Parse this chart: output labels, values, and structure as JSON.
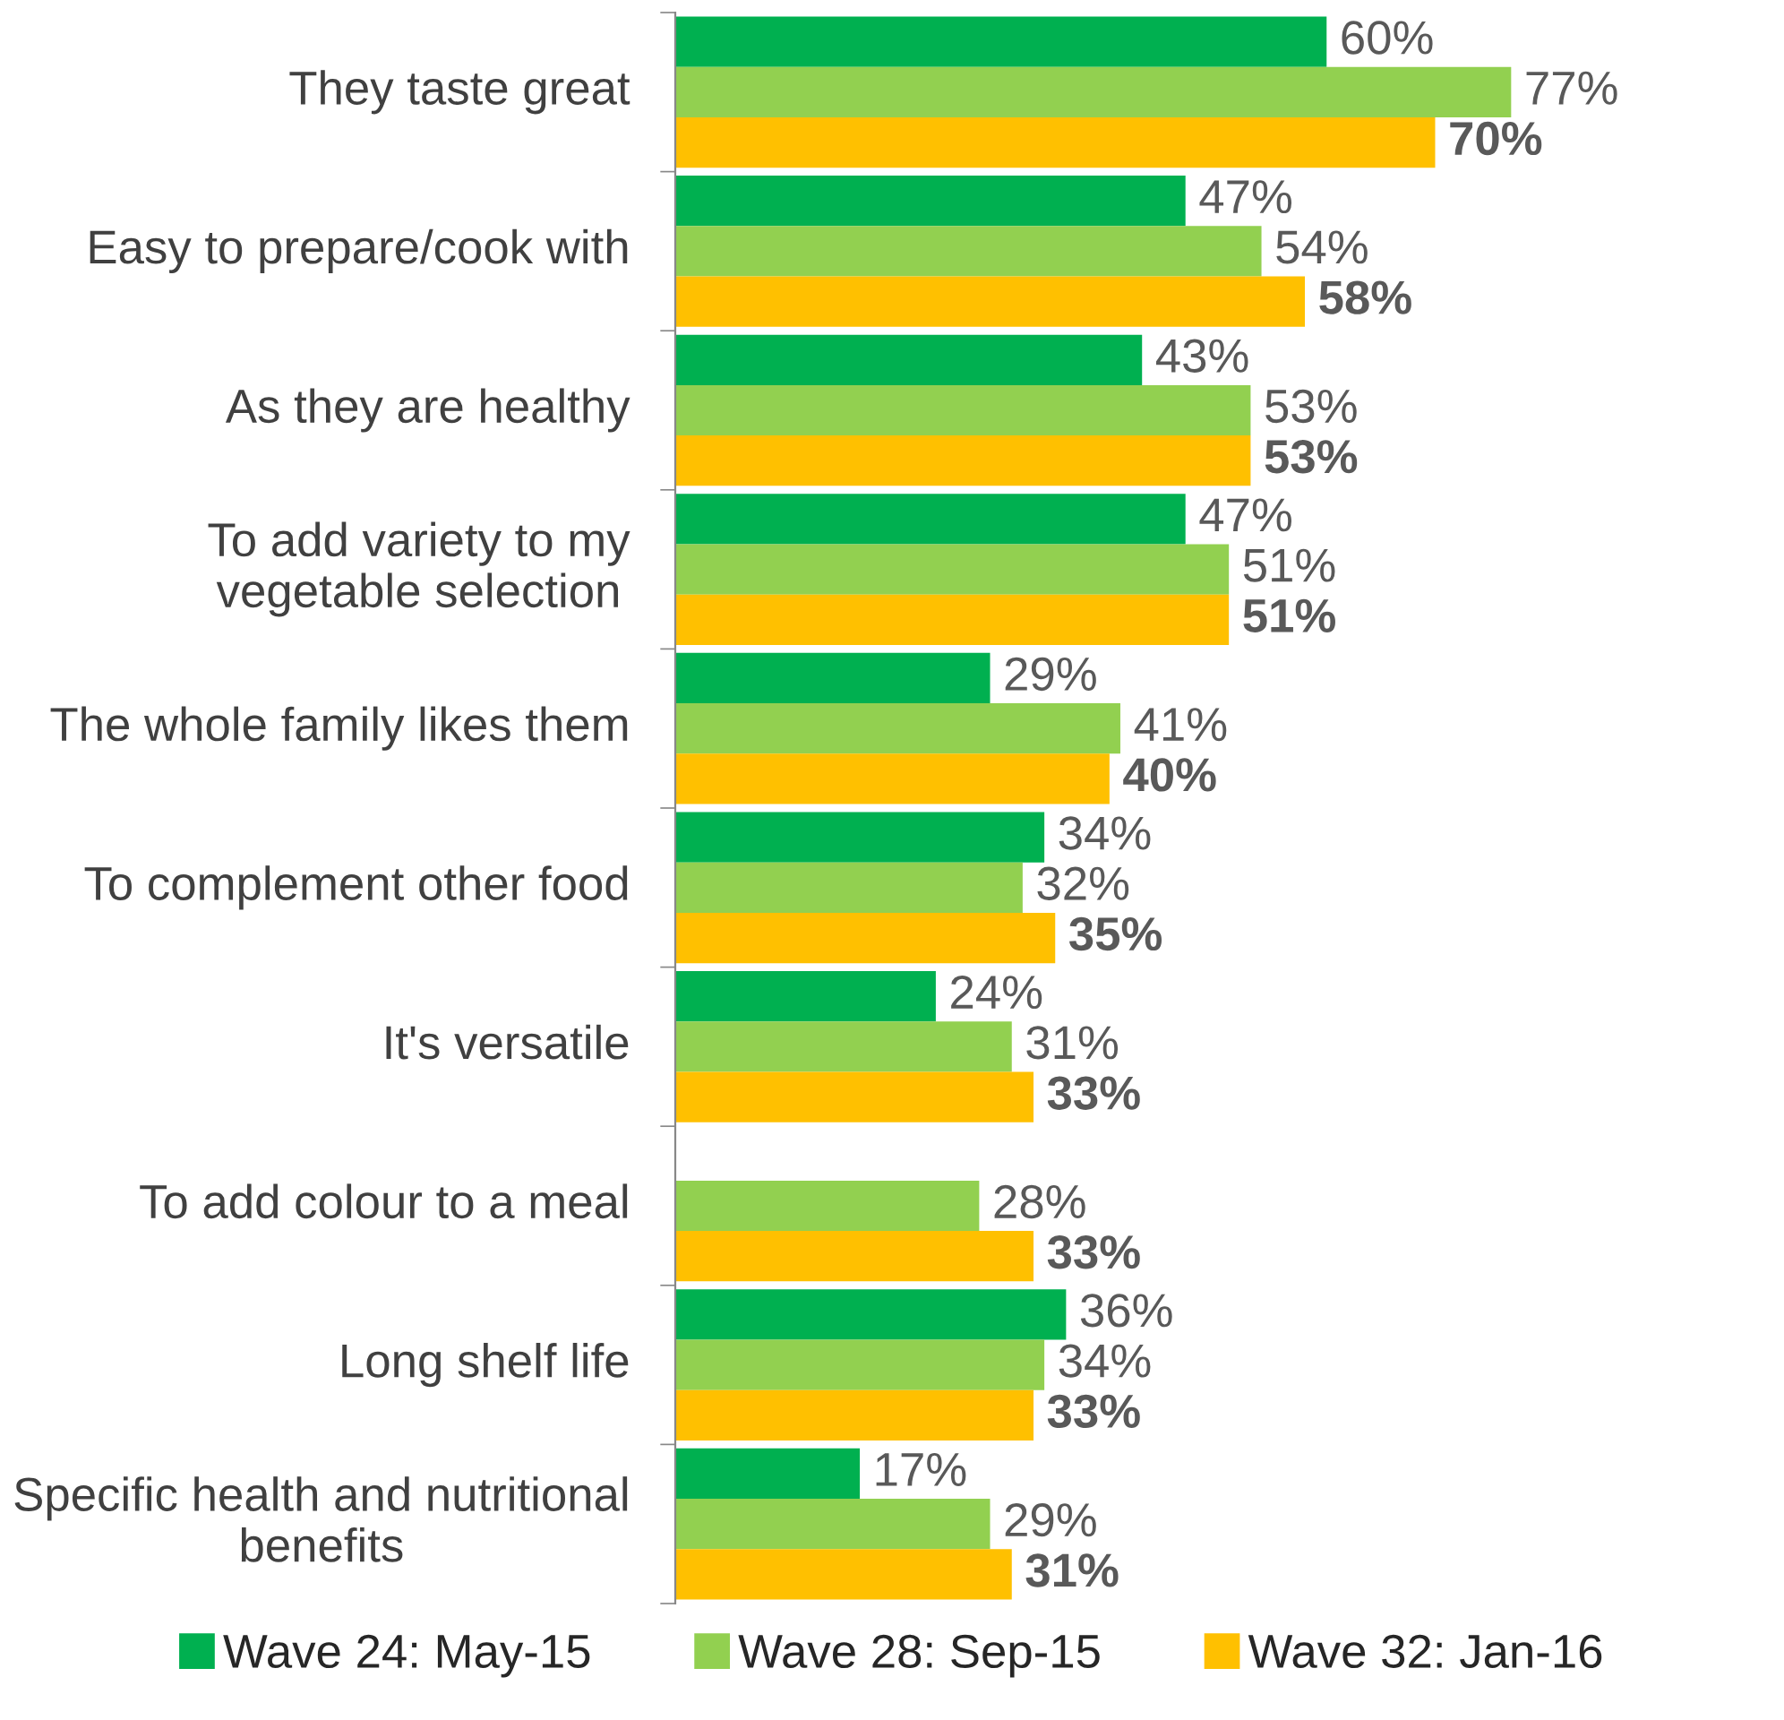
{
  "chart_data": {
    "type": "bar",
    "orientation": "horizontal",
    "legend": "bottom",
    "categories": [
      "They taste great",
      "Easy to prepare/cook with",
      "As they are healthy",
      "To add variety to my vegetable selection",
      "The whole family likes them",
      "To complement other food",
      "It's versatile",
      "To add colour to a meal",
      "Long shelf life",
      "Specific health and nutritional benefits"
    ],
    "series": [
      {
        "name": "Wave 24: May-15",
        "color": "#00b050",
        "values": [
          60,
          47,
          43,
          47,
          29,
          34,
          24,
          null,
          36,
          17
        ],
        "value_labels": [
          "60%",
          "47%",
          "43%",
          "47%",
          "29%",
          "34%",
          "24%",
          null,
          "36%",
          "17%"
        ]
      },
      {
        "name": "Wave 28: Sep-15",
        "color": "#92d050",
        "values": [
          77,
          54,
          53,
          51,
          41,
          32,
          31,
          28,
          34,
          29
        ],
        "value_labels": [
          "77%",
          "54%",
          "53%",
          "51%",
          "41%",
          "32%",
          "31%",
          "28%",
          "34%",
          "29%"
        ]
      },
      {
        "name": "Wave 32: Jan-16",
        "color": "#ffc000",
        "values": [
          70,
          58,
          53,
          51,
          40,
          35,
          33,
          33,
          33,
          31
        ],
        "value_labels": [
          "70%",
          "58%",
          "53%",
          "51%",
          "40%",
          "35%",
          "33%",
          "33%",
          "33%",
          "31%"
        ]
      }
    ]
  }
}
